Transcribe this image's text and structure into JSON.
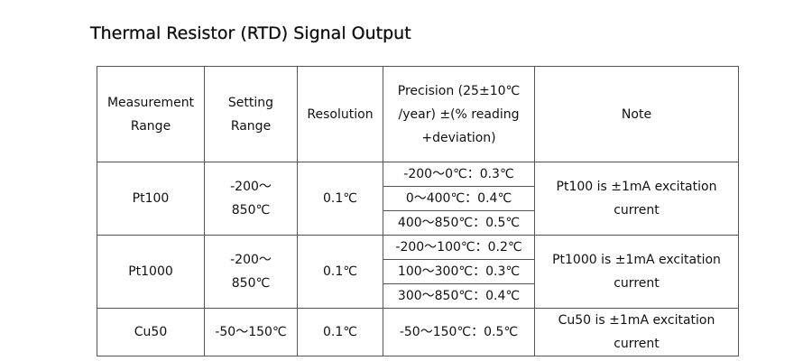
{
  "title": "Thermal Resistor (RTD) Signal Output",
  "table": {
    "headers": [
      "Measurement Range",
      "Setting Range",
      "Resolution",
      "Precision (25±10℃ /year) ±(% reading +deviation)",
      "Note"
    ],
    "rows": [
      {
        "range": "Pt100",
        "setting": "-200～ 850℃",
        "resolution": "0.1℃",
        "precision": [
          "-200～0℃：0.3℃",
          "0～400℃：0.4℃",
          "400～850℃：0.5℃"
        ],
        "note": "Pt100 is ±1mA excitation current"
      },
      {
        "range": "Pt1000",
        "setting": "-200～ 850℃",
        "resolution": "0.1℃",
        "precision": [
          "-200～100℃：0.2℃",
          "100～300℃：0.3℃",
          "300～850℃：0.4℃"
        ],
        "note": "Pt1000 is ±1mA excitation current"
      },
      {
        "range": "Cu50",
        "setting": "-50～150℃",
        "resolution": "0.1℃",
        "precision": [
          "-50～150℃：0.5℃"
        ],
        "note": "Cu50 is ±1mA excitation current"
      }
    ]
  }
}
